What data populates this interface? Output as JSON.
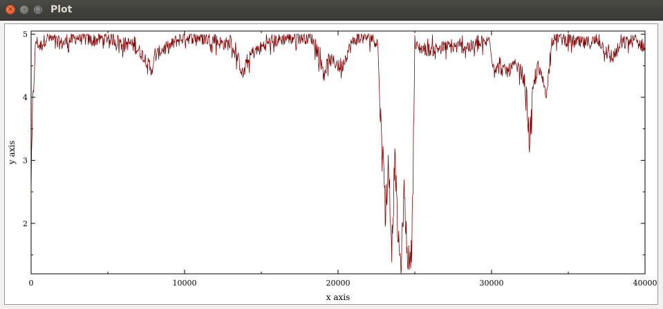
{
  "window": {
    "title": "Plot",
    "buttons": {
      "close": "×",
      "minimize": "–",
      "maximize": "□"
    }
  },
  "chart_data": {
    "type": "line",
    "xlabel": "x axis",
    "ylabel": "y axis",
    "xlim": [
      0,
      40000
    ],
    "ylim": [
      1.2,
      5.05
    ],
    "xticks": [
      0,
      10000,
      20000,
      30000,
      40000
    ],
    "xtick_labels": [
      "0",
      "10000",
      "20000",
      "30000",
      "40000"
    ],
    "yticks": [
      2,
      3,
      4,
      5
    ],
    "ytick_labels": [
      "2",
      "3",
      "4",
      "5"
    ],
    "grid": false,
    "line_color": "#800000",
    "series": [
      {
        "x": [
          0,
          100,
          300,
          600,
          1000,
          2000,
          3000,
          4000,
          5000,
          6000,
          6500,
          7000,
          7500,
          7800,
          8100,
          8500,
          9000,
          9500,
          10000,
          11000,
          12000,
          12500,
          13000,
          13500,
          13800,
          14100,
          14400,
          14800,
          15300,
          16000,
          16800,
          17500,
          18300,
          18800,
          19100,
          19400,
          19800,
          20200,
          20600,
          20900,
          21300,
          21800,
          22200,
          22600,
          22700,
          22900,
          23100,
          23300,
          23500,
          23700,
          23900,
          24100,
          24300,
          24500,
          24700,
          24800,
          25000,
          26000,
          27000,
          28000,
          29000,
          29900,
          30100,
          30600,
          31000,
          31500,
          32000,
          32300,
          32500,
          32700,
          33000,
          33300,
          33600,
          33900,
          34300,
          35000,
          36000,
          37000,
          37800,
          38500,
          39300,
          40000
        ],
        "y": [
          2.5,
          3.8,
          4.9,
          4.8,
          4.95,
          4.85,
          4.95,
          4.9,
          4.95,
          4.85,
          4.85,
          4.75,
          4.6,
          4.4,
          4.65,
          4.75,
          4.8,
          4.9,
          4.95,
          4.95,
          4.9,
          4.85,
          4.85,
          4.6,
          4.35,
          4.55,
          4.7,
          4.75,
          4.85,
          4.9,
          4.95,
          4.95,
          4.95,
          4.6,
          4.4,
          4.6,
          4.55,
          4.45,
          4.7,
          4.85,
          4.95,
          4.95,
          4.95,
          4.85,
          4.0,
          3.2,
          2.2,
          2.8,
          1.6,
          3.1,
          1.8,
          1.3,
          2.5,
          1.5,
          1.4,
          1.6,
          4.8,
          4.75,
          4.8,
          4.8,
          4.8,
          4.9,
          4.5,
          4.45,
          4.4,
          4.5,
          4.4,
          3.9,
          3.2,
          4.1,
          4.45,
          4.3,
          4.05,
          4.9,
          4.95,
          4.9,
          4.85,
          4.9,
          4.6,
          4.85,
          4.9,
          4.8
        ]
      }
    ]
  }
}
